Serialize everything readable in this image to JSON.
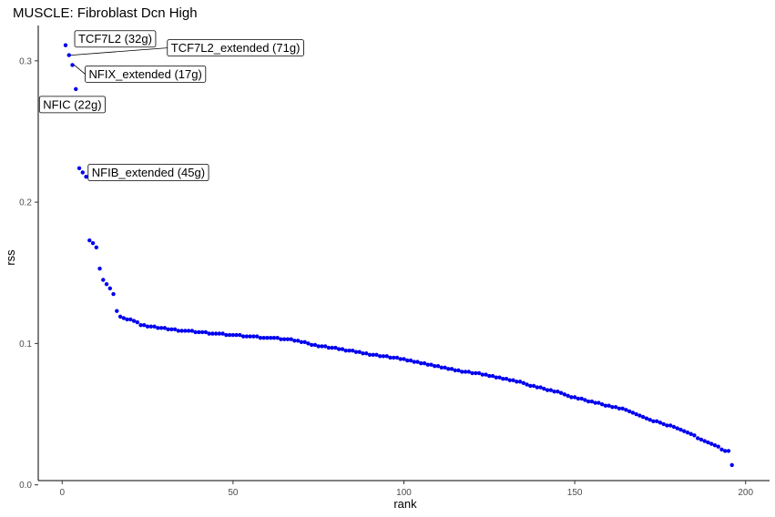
{
  "chart_data": {
    "type": "scatter",
    "title": "MUSCLE: Fibroblast Dcn High",
    "xlabel": "rank",
    "ylabel": "rss",
    "xlim": [
      -7,
      207
    ],
    "ylim": [
      0.003,
      0.325
    ],
    "x_ticks": [
      0,
      50,
      100,
      150,
      200
    ],
    "y_ticks": [
      0.0,
      0.1,
      0.2,
      0.3
    ],
    "x_tick_labels": [
      "0",
      "50",
      "100",
      "150",
      "200"
    ],
    "y_tick_labels": [
      "0.0",
      "0.1",
      "0.2",
      "0.3"
    ],
    "grid": false,
    "point_color": "#0000ee",
    "values": [
      0.311,
      0.304,
      0.297,
      0.28,
      0.224,
      0.221,
      0.218,
      0.173,
      0.171,
      0.168,
      0.153,
      0.145,
      0.142,
      0.139,
      0.135,
      0.123,
      0.119,
      0.118,
      0.117,
      0.117,
      0.116,
      0.115,
      0.113,
      0.113,
      0.112,
      0.112,
      0.112,
      0.111,
      0.111,
      0.111,
      0.11,
      0.11,
      0.11,
      0.109,
      0.109,
      0.109,
      0.109,
      0.109,
      0.108,
      0.108,
      0.108,
      0.108,
      0.107,
      0.107,
      0.107,
      0.107,
      0.107,
      0.106,
      0.106,
      0.106,
      0.106,
      0.106,
      0.105,
      0.105,
      0.105,
      0.105,
      0.105,
      0.104,
      0.104,
      0.104,
      0.104,
      0.104,
      0.104,
      0.103,
      0.103,
      0.103,
      0.103,
      0.102,
      0.102,
      0.101,
      0.101,
      0.1,
      0.099,
      0.099,
      0.098,
      0.098,
      0.098,
      0.097,
      0.097,
      0.097,
      0.096,
      0.096,
      0.095,
      0.095,
      0.095,
      0.094,
      0.094,
      0.093,
      0.093,
      0.092,
      0.092,
      0.092,
      0.091,
      0.091,
      0.091,
      0.09,
      0.09,
      0.09,
      0.089,
      0.089,
      0.088,
      0.088,
      0.087,
      0.087,
      0.086,
      0.086,
      0.085,
      0.085,
      0.084,
      0.084,
      0.083,
      0.083,
      0.082,
      0.082,
      0.081,
      0.081,
      0.08,
      0.08,
      0.08,
      0.079,
      0.079,
      0.079,
      0.078,
      0.078,
      0.077,
      0.077,
      0.076,
      0.076,
      0.075,
      0.075,
      0.074,
      0.074,
      0.073,
      0.073,
      0.072,
      0.071,
      0.07,
      0.07,
      0.069,
      0.069,
      0.068,
      0.067,
      0.067,
      0.066,
      0.066,
      0.065,
      0.064,
      0.063,
      0.062,
      0.062,
      0.061,
      0.061,
      0.06,
      0.059,
      0.059,
      0.058,
      0.058,
      0.057,
      0.056,
      0.056,
      0.055,
      0.055,
      0.054,
      0.054,
      0.053,
      0.052,
      0.051,
      0.05,
      0.049,
      0.048,
      0.047,
      0.046,
      0.045,
      0.045,
      0.044,
      0.043,
      0.042,
      0.042,
      0.041,
      0.04,
      0.039,
      0.038,
      0.037,
      0.036,
      0.035,
      0.033,
      0.032,
      0.031,
      0.03,
      0.029,
      0.028,
      0.027,
      0.025,
      0.024,
      0.024,
      0.014
    ],
    "annotations": [
      {
        "rank": 1,
        "text": "TCF7L2 (32g)"
      },
      {
        "rank": 2,
        "text": "TCF7L2_extended (71g)"
      },
      {
        "rank": 3,
        "text": "NFIX_extended (17g)"
      },
      {
        "rank": 4,
        "text": "NFIC (22g)"
      },
      {
        "rank": 6,
        "text": "NFIB_extended (45g)"
      }
    ]
  }
}
